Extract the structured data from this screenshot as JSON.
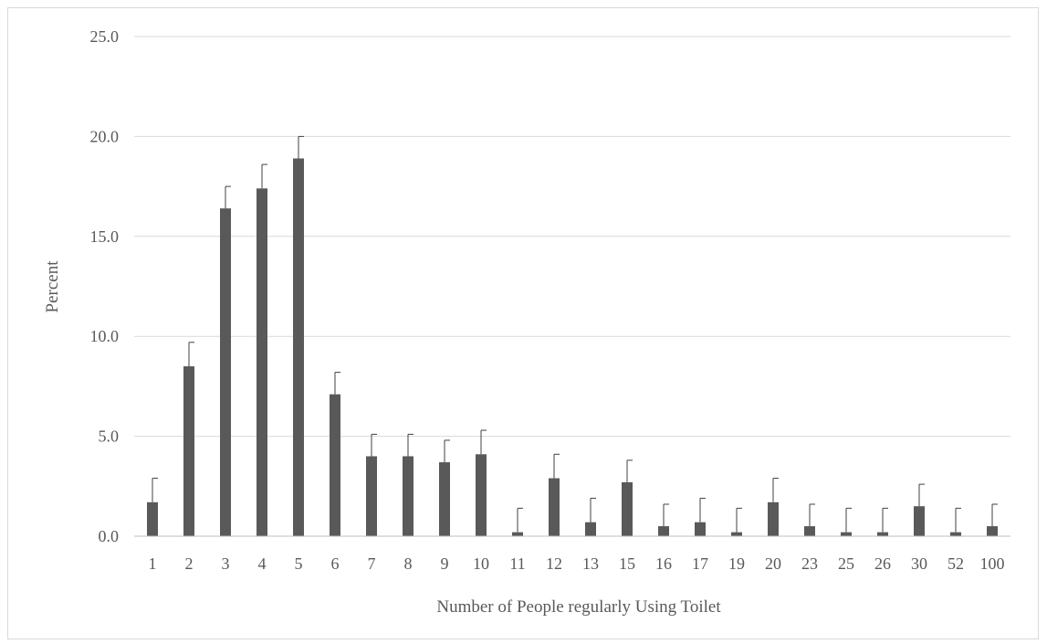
{
  "chart_data": {
    "type": "bar",
    "title": "",
    "xlabel": "Number of People regularly Using Toilet",
    "ylabel": "Percent",
    "ylim": [
      0,
      25
    ],
    "yticks": [
      "0.0",
      "5.0",
      "10.0",
      "15.0",
      "20.0",
      "25.0"
    ],
    "grid": true,
    "categories": [
      "1",
      "2",
      "3",
      "4",
      "5",
      "6",
      "7",
      "8",
      "9",
      "10",
      "11",
      "12",
      "13",
      "15",
      "16",
      "17",
      "19",
      "20",
      "23",
      "25",
      "26",
      "30",
      "52",
      "100"
    ],
    "values": [
      1.7,
      8.5,
      16.4,
      17.4,
      18.9,
      7.1,
      4.0,
      4.0,
      3.7,
      4.1,
      0.2,
      2.9,
      0.7,
      2.7,
      0.5,
      0.7,
      0.2,
      1.7,
      0.5,
      0.2,
      0.2,
      1.5,
      0.2,
      0.5
    ],
    "error_upper": [
      2.9,
      9.7,
      17.5,
      18.6,
      20.0,
      8.2,
      5.1,
      5.1,
      4.8,
      5.3,
      1.4,
      4.1,
      1.9,
      3.8,
      1.6,
      1.9,
      1.4,
      2.9,
      1.6,
      1.4,
      1.4,
      2.6,
      1.4,
      1.6
    ],
    "colors": {
      "bar": "#595959",
      "grid": "#d9d9d9",
      "axis": "#bfbfbf",
      "error": "#404040"
    }
  }
}
